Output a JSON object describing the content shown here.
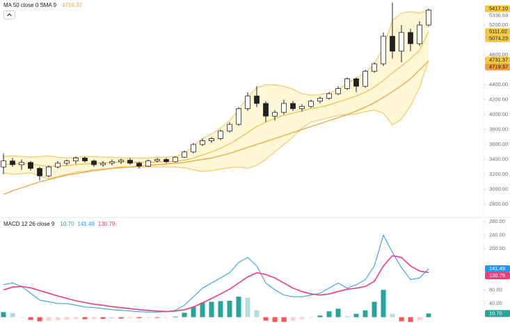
{
  "chart_data": [
    {
      "type": "candlestick",
      "title": "MA 50 close 0 SMA 9",
      "title_value": {
        "label": "4719.37",
        "color": "#f29d38"
      },
      "categories": [
        null,
        null,
        null,
        null,
        null,
        null,
        null,
        null,
        null,
        null,
        null,
        null,
        null,
        null,
        null,
        null,
        null,
        null,
        null,
        null,
        null,
        null,
        null,
        null,
        null,
        null,
        null,
        null,
        null,
        null,
        null,
        null,
        null,
        null,
        null,
        null,
        null,
        null,
        null,
        null,
        null,
        null,
        null,
        null,
        null,
        null,
        null,
        null
      ],
      "open": [
        3300,
        3380,
        3330,
        3360,
        3280,
        3180,
        3300,
        3350,
        3380,
        3420,
        3380,
        3330,
        3350,
        3370,
        3390,
        3350,
        3310,
        3380,
        3400,
        3370,
        3430,
        3500,
        3600,
        3650,
        3680,
        3780,
        3870,
        4080,
        4250,
        4150,
        3980,
        4030,
        4150,
        4080,
        4110,
        4180,
        4220,
        4280,
        4350,
        4480,
        4380,
        4580,
        4680,
        5050,
        4850,
        5100,
        4950,
        5200
      ],
      "high": [
        3480,
        3420,
        3400,
        3380,
        3300,
        3320,
        3380,
        3400,
        3440,
        3440,
        3400,
        3380,
        3400,
        3410,
        3420,
        3370,
        3400,
        3420,
        3420,
        3440,
        3520,
        3620,
        3680,
        3700,
        3800,
        3900,
        4100,
        4300,
        4380,
        4180,
        4060,
        4200,
        4180,
        4140,
        4200,
        4240,
        4300,
        4380,
        4500,
        4500,
        4600,
        4700,
        5100,
        5500,
        5200,
        5150,
        5250,
        5420
      ],
      "low": [
        3200,
        3300,
        3260,
        3250,
        3120,
        3160,
        3280,
        3320,
        3340,
        3360,
        3300,
        3300,
        3320,
        3340,
        3330,
        3280,
        3300,
        3360,
        3350,
        3360,
        3420,
        3480,
        3580,
        3620,
        3660,
        3760,
        3850,
        4050,
        4100,
        3900,
        3920,
        4000,
        4050,
        4040,
        4090,
        4150,
        4200,
        4260,
        4330,
        4300,
        4360,
        4560,
        4650,
        4750,
        4700,
        4850,
        4920,
        5180
      ],
      "close": [
        3380,
        3330,
        3360,
        3280,
        3180,
        3300,
        3350,
        3380,
        3420,
        3380,
        3330,
        3350,
        3370,
        3390,
        3350,
        3310,
        3380,
        3400,
        3370,
        3430,
        3500,
        3600,
        3650,
        3680,
        3780,
        3870,
        4080,
        4250,
        4150,
        3980,
        4030,
        4150,
        4080,
        4110,
        4180,
        4220,
        4280,
        4350,
        4480,
        4380,
        4580,
        4680,
        5050,
        4850,
        5100,
        4950,
        5200,
        5400
      ],
      "up_color": "#ffffff",
      "down_color": "#222222",
      "wick_color": "#222222",
      "bands": {
        "line_color": "#f2c14e",
        "basis_color": "#f0b429",
        "fill": "#fff3c4",
        "upper": [
          3440,
          3450,
          3440,
          3430,
          3440,
          3450,
          3430,
          3420,
          3430,
          3440,
          3440,
          3430,
          3430,
          3420,
          3420,
          3420,
          3420,
          3430,
          3430,
          3440,
          3480,
          3580,
          3680,
          3740,
          3820,
          3920,
          4060,
          4240,
          4360,
          4400,
          4400,
          4380,
          4340,
          4280,
          4260,
          4270,
          4290,
          4340,
          4420,
          4490,
          4560,
          4680,
          4900,
          5260,
          5360,
          5380,
          5360,
          5400
        ],
        "basis": [
          3330,
          3340,
          3345,
          3340,
          3320,
          3310,
          3310,
          3320,
          3330,
          3340,
          3350,
          3355,
          3360,
          3365,
          3365,
          3360,
          3360,
          3365,
          3370,
          3375,
          3390,
          3420,
          3460,
          3500,
          3550,
          3610,
          3680,
          3760,
          3840,
          3900,
          3950,
          3990,
          4020,
          4050,
          4080,
          4100,
          4130,
          4170,
          4210,
          4250,
          4300,
          4370,
          4460,
          4560,
          4650,
          4750,
          4860,
          5111.02
        ],
        "lower": [
          3220,
          3200,
          3210,
          3220,
          3180,
          3140,
          3170,
          3200,
          3230,
          3240,
          3260,
          3270,
          3280,
          3300,
          3300,
          3290,
          3300,
          3300,
          3300,
          3300,
          3290,
          3260,
          3240,
          3250,
          3270,
          3290,
          3300,
          3280,
          3320,
          3400,
          3500,
          3600,
          3700,
          3820,
          3900,
          3930,
          3960,
          3990,
          4000,
          4010,
          4040,
          4060,
          4020,
          3860,
          3940,
          4120,
          4360,
          4731.37
        ]
      },
      "ma": {
        "color": "#f29d38",
        "values": [
          2930,
          2980,
          3020,
          3060,
          3100,
          3130,
          3160,
          3190,
          3210,
          3230,
          3250,
          3265,
          3280,
          3290,
          3300,
          3310,
          3320,
          3330,
          3340,
          3350,
          3360,
          3380,
          3400,
          3420,
          3450,
          3480,
          3520,
          3560,
          3600,
          3640,
          3680,
          3720,
          3760,
          3800,
          3840,
          3880,
          3920,
          3960,
          4000,
          4050,
          4100,
          4160,
          4230,
          4310,
          4390,
          4480,
          4600,
          4719.37
        ]
      },
      "ylim": [
        2633,
        5535
      ],
      "yticks": [
        {
          "value": 5200,
          "label": "5200.00"
        },
        {
          "value": 4800,
          "label": "4800.00"
        },
        {
          "value": 4400,
          "label": "4400.00"
        },
        {
          "value": 4200,
          "label": "4200.00"
        },
        {
          "value": 4000,
          "label": "4000.00"
        },
        {
          "value": 3800,
          "label": "3800.00"
        },
        {
          "value": 3600,
          "label": "3600.00"
        },
        {
          "value": 3400,
          "label": "3400.00"
        },
        {
          "value": 3200,
          "label": "3200.00"
        },
        {
          "value": 3000,
          "label": "3000.00"
        },
        {
          "value": 2800,
          "label": "2800.00"
        }
      ],
      "price_labels": [
        {
          "value": 5417.1,
          "label": "5417.10",
          "background": "#f5c842",
          "color": "#131722"
        },
        {
          "value": 5336.69,
          "label": "5336.69",
          "background": null,
          "color": "#6a6d78"
        },
        {
          "value": 5111.02,
          "label": "5111.02",
          "background": "#f5c842",
          "color": "#131722"
        },
        {
          "value": 5074.23,
          "label": "5074.23",
          "background": "#f5c842",
          "color": "#131722"
        },
        {
          "value": 4731.37,
          "label": "4731.37",
          "background": "#f5c842",
          "color": "#131722"
        },
        {
          "value": 4719.37,
          "label": "4719.37",
          "background": "#f29d38",
          "color": "#131722"
        }
      ]
    },
    {
      "type": "macd",
      "title": "MACD 12 26 close 9",
      "header_values": [
        {
          "label": "10.70",
          "color": "#26a69a"
        },
        {
          "label": "141.49",
          "color": "#2196f3"
        },
        {
          "label": "130.79",
          "color": "#f23b7a"
        }
      ],
      "categories": [
        null,
        null,
        null,
        null,
        null,
        null,
        null,
        null,
        null,
        null,
        null,
        null,
        null,
        null,
        null,
        null,
        null,
        null,
        null,
        null,
        null,
        null,
        null,
        null,
        null,
        null,
        null,
        null,
        null,
        null,
        null,
        null,
        null,
        null,
        null,
        null,
        null,
        null,
        null,
        null,
        null,
        null,
        null,
        null,
        null,
        null,
        null,
        null
      ],
      "histogram": [
        15,
        12,
        0,
        -8,
        -12,
        -10,
        -9,
        -7,
        -6,
        -6,
        -5,
        -5,
        -4,
        -4,
        -3,
        -3,
        -2,
        -2,
        -1,
        2,
        13,
        30,
        43,
        45,
        47,
        48,
        60,
        57,
        20,
        -10,
        -14,
        -14,
        -10,
        -6,
        -2,
        5,
        17,
        25,
        3,
        10,
        20,
        45,
        80,
        10,
        -12,
        -14,
        -8,
        10.7
      ],
      "histogram_colors": {
        "up_rising": "#26a69a",
        "up_falling": "#b2dfdb",
        "down_falling": "#ff5252",
        "down_rising": "#ffcdd2"
      },
      "macd": {
        "color": "#2196f3",
        "values": [
          95,
          100,
          90,
          70,
          50,
          45,
          40,
          40,
          35,
          30,
          28,
          25,
          22,
          20,
          18,
          16,
          15,
          15,
          16,
          20,
          35,
          60,
          85,
          100,
          115,
          130,
          160,
          175,
          150,
          100,
          80,
          65,
          60,
          60,
          65,
          70,
          85,
          100,
          85,
          95,
          110,
          150,
          240,
          190,
          145,
          110,
          115,
          141.49
        ]
      },
      "signal": {
        "color": "#f23b7a",
        "values": [
          80,
          88,
          90,
          86,
          78,
          70,
          62,
          55,
          48,
          43,
          38,
          35,
          31,
          28,
          25,
          22,
          20,
          18,
          17,
          18,
          22,
          30,
          42,
          55,
          68,
          82,
          100,
          118,
          130,
          125,
          115,
          100,
          85,
          75,
          68,
          65,
          68,
          75,
          82,
          85,
          90,
          105,
          150,
          180,
          175,
          150,
          135,
          130.79
        ]
      },
      "ylim": [
        -17,
        292
      ],
      "yticks": [
        {
          "value": 280,
          "label": "280.00"
        },
        {
          "value": 240,
          "label": "240.00"
        },
        {
          "value": 200,
          "label": "200.00"
        },
        {
          "value": 80,
          "label": "80.00"
        },
        {
          "value": 40,
          "label": "40.00"
        }
      ],
      "price_labels": [
        {
          "value": 141.49,
          "label": "141.49",
          "background": "#2196f3",
          "color": "#ffffff"
        },
        {
          "value": 130.79,
          "label": "130.79",
          "background": "#f23b7a",
          "color": "#ffffff"
        },
        {
          "value": 10.7,
          "label": "10.70",
          "background": "#26a69a",
          "color": "#ffffff"
        }
      ]
    }
  ]
}
